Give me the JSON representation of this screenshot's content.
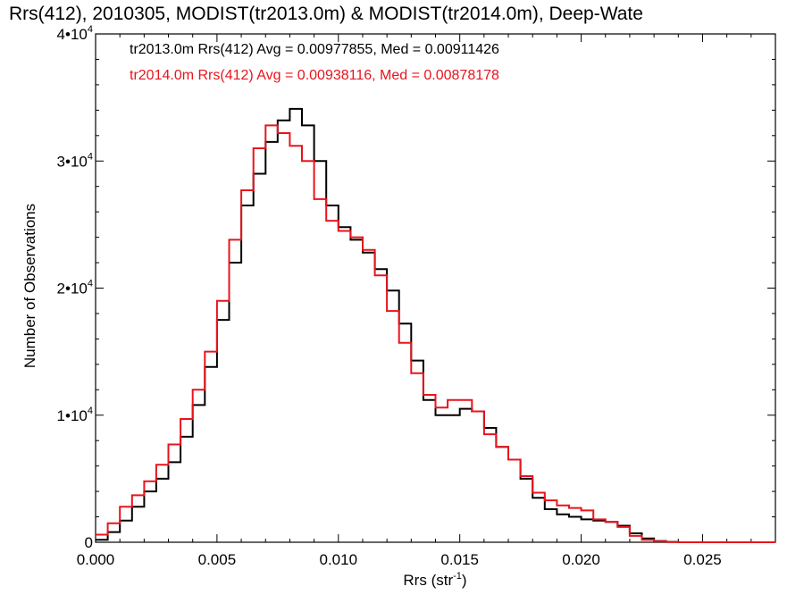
{
  "chart_data": {
    "type": "line",
    "title": "Rrs(412), 2010305, MODIST(tr2013.0m) & MODIST(tr2014.0m), Deep-Wate",
    "xlabel": "Rrs (str",
    "xlabel_sup": "-1",
    "xlabel_tail": ")",
    "ylabel": "Number of Observations",
    "xlim": [
      0.0,
      0.028
    ],
    "ylim": [
      0,
      40000
    ],
    "xticks": [
      {
        "value": 0.0,
        "label": "0.000"
      },
      {
        "value": 0.005,
        "label": "0.005"
      },
      {
        "value": 0.01,
        "label": "0.010"
      },
      {
        "value": 0.015,
        "label": "0.015"
      },
      {
        "value": 0.02,
        "label": "0.020"
      },
      {
        "value": 0.025,
        "label": "0.025"
      }
    ],
    "yticks": [
      {
        "value": 0,
        "label": "0",
        "sup": ""
      },
      {
        "value": 10000,
        "label": "1•10",
        "sup": "4"
      },
      {
        "value": 20000,
        "label": "2•10",
        "sup": "4"
      },
      {
        "value": 30000,
        "label": "3•10",
        "sup": "4"
      },
      {
        "value": 40000,
        "label": "4•10",
        "sup": "4"
      }
    ],
    "legend": [
      {
        "text": "tr2013.0m Rrs(412) Avg = 0.00977855, Med = 0.00911426",
        "color": "#000000"
      },
      {
        "text": "tr2014.0m Rrs(412) Avg = 0.00938116, Med = 0.00878178",
        "color": "#e8141c"
      }
    ],
    "series": [
      {
        "color": "#000000",
        "x": [
          0.0,
          0.0005,
          0.001,
          0.0015,
          0.002,
          0.0025,
          0.003,
          0.0035,
          0.004,
          0.0045,
          0.005,
          0.0055,
          0.006,
          0.0065,
          0.007,
          0.0075,
          0.008,
          0.0085,
          0.009,
          0.0095,
          0.01,
          0.0105,
          0.011,
          0.0115,
          0.012,
          0.0125,
          0.013,
          0.0135,
          0.014,
          0.0145,
          0.015,
          0.0155,
          0.016,
          0.0165,
          0.017,
          0.0175,
          0.018,
          0.0185,
          0.019,
          0.0195,
          0.02,
          0.0205,
          0.021,
          0.0215,
          0.022,
          0.0225,
          0.023,
          0.0235,
          0.024,
          0.025,
          0.026,
          0.027,
          0.028
        ],
        "y": [
          200,
          800,
          1700,
          2800,
          4000,
          5000,
          6300,
          8300,
          10800,
          13800,
          17500,
          22000,
          26500,
          29000,
          31500,
          33200,
          34100,
          32800,
          30000,
          26500,
          24800,
          23800,
          22800,
          21500,
          19800,
          17200,
          14300,
          11200,
          10000,
          10000,
          10500,
          10300,
          9000,
          7500,
          6500,
          5000,
          3500,
          2600,
          2200,
          2000,
          1800,
          1700,
          1600,
          1300,
          700,
          300,
          100,
          30,
          0,
          0,
          0,
          0,
          0
        ]
      },
      {
        "color": "#e8141c",
        "x": [
          0.0,
          0.0005,
          0.001,
          0.0015,
          0.002,
          0.0025,
          0.003,
          0.0035,
          0.004,
          0.0045,
          0.005,
          0.0055,
          0.006,
          0.0065,
          0.007,
          0.0075,
          0.008,
          0.0085,
          0.009,
          0.0095,
          0.01,
          0.0105,
          0.011,
          0.0115,
          0.012,
          0.0125,
          0.013,
          0.0135,
          0.014,
          0.0145,
          0.015,
          0.0155,
          0.016,
          0.0165,
          0.017,
          0.0175,
          0.018,
          0.0185,
          0.019,
          0.0195,
          0.02,
          0.0205,
          0.021,
          0.0215,
          0.022,
          0.0225,
          0.023,
          0.0235,
          0.024,
          0.025,
          0.026,
          0.027,
          0.028
        ],
        "y": [
          600,
          1500,
          2800,
          3700,
          4800,
          6100,
          7700,
          9700,
          12000,
          15000,
          19000,
          23800,
          27700,
          31000,
          32800,
          32200,
          31200,
          30000,
          27000,
          25300,
          24500,
          24000,
          23000,
          21000,
          18200,
          15700,
          13300,
          11600,
          10600,
          11200,
          11200,
          10300,
          8500,
          7500,
          6500,
          5200,
          3900,
          3300,
          2900,
          2700,
          2500,
          1800,
          1600,
          1200,
          500,
          200,
          80,
          20,
          0,
          0,
          0,
          0,
          0
        ]
      }
    ]
  }
}
